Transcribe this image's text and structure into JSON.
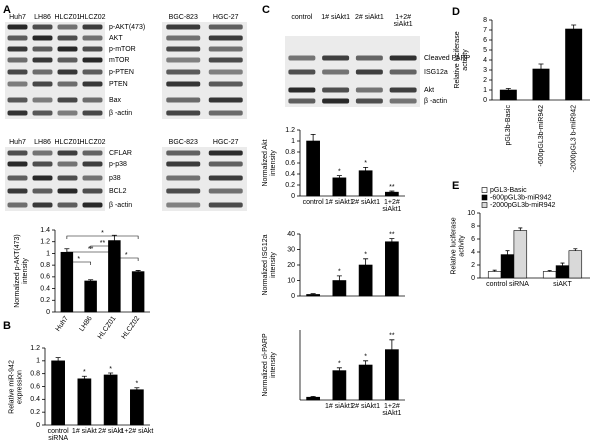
{
  "panel_labels": [
    "A",
    "B",
    "C",
    "D",
    "E"
  ],
  "blots": [
    {
      "columns": [
        "Huh7",
        "LH86",
        "HLCZ01",
        "HLCZ02"
      ],
      "rows": [
        "p-AKT(473)",
        "AKT",
        "p-mTOR",
        "mTOR",
        "p-PTEN",
        "PTEN",
        "Bax",
        "β -actin"
      ]
    },
    {
      "columns": [
        "BGC-823",
        "HGC-27"
      ]
    },
    {
      "columns": [
        "Huh7",
        "LH86",
        "HLCZ01",
        "HLCZ02"
      ],
      "rows": [
        "CFLAR",
        "p-p38",
        "p38",
        "BCL2",
        "β -actin"
      ]
    },
    {
      "columns": [
        "BGC-823",
        "HGC-27"
      ]
    },
    {
      "columns": [
        "control",
        "1# siAkt1",
        "2# siAkt1",
        "1+2# siAkt1"
      ],
      "rows": [
        "Cleaved PARP",
        "ISG12a",
        "Akt",
        "β -actin"
      ]
    }
  ],
  "chart_data": [
    {
      "type": "bar",
      "y_label": "Normalized p-AKT(473) intensity",
      "categories": [
        "Huh7",
        "LH86",
        "HLCZ01",
        "HLCZ02"
      ],
      "values": [
        1.02,
        0.53,
        1.22,
        0.69
      ],
      "errors": [
        0.06,
        0.02,
        0.09,
        0.02
      ],
      "color": "#000000",
      "ylim": [
        0,
        1.4
      ],
      "yticks": [
        0,
        0.2,
        0.4,
        0.6,
        0.8,
        1,
        1.2,
        1.4
      ],
      "annotations": [
        "*",
        "**",
        "**",
        "*",
        "*"
      ]
    },
    {
      "type": "bar",
      "y_label": "Relative miR-942 expression",
      "categories": [
        "control siRNA",
        "1# siAkt",
        "2# siAkt",
        "1+2# siAkt"
      ],
      "values": [
        1.0,
        0.72,
        0.78,
        0.55
      ],
      "errors": [
        0.05,
        0.04,
        0.03,
        0.03
      ],
      "marks": [
        null,
        "*",
        "*",
        "*"
      ],
      "color": "#000000",
      "ylim": [
        0,
        1.2
      ],
      "yticks": [
        0,
        0.2,
        0.4,
        0.6,
        0.8,
        1,
        1.2
      ]
    },
    {
      "type": "bar",
      "y_label": "Normalized Akt intensity",
      "categories": [
        "control",
        "1# siAkt1",
        "2# siAkt1",
        "1+2# siAkt1"
      ],
      "values": [
        1.0,
        0.33,
        0.46,
        0.07
      ],
      "errors": [
        0.12,
        0.04,
        0.06,
        0.02
      ],
      "marks": [
        null,
        "*",
        "*",
        "**"
      ],
      "color": "#000000",
      "ylim": [
        0,
        1.2
      ],
      "yticks": [
        0,
        0.2,
        0.4,
        0.6,
        0.8,
        1,
        1.2
      ]
    },
    {
      "type": "bar",
      "y_label": "Normalized ISG12a intensity",
      "values": [
        1,
        10,
        20,
        35
      ],
      "errors": [
        0.5,
        3,
        4,
        2
      ],
      "marks": [
        null,
        "*",
        "*",
        "**"
      ],
      "color": "#000000",
      "ylim": [
        0,
        40
      ],
      "yticks": [
        0,
        10,
        20,
        30,
        40
      ]
    },
    {
      "type": "bar",
      "y_label": "Normalized cl-PARP intensity",
      "categories": [
        null,
        "1# siAkt1",
        "2# siAkt1",
        "1+2# siAkt1"
      ],
      "values": [
        1,
        10.5,
        12.5,
        18
      ],
      "errors": [
        0.3,
        1,
        1.5,
        3.5
      ],
      "marks": [
        null,
        "*",
        "*",
        "**"
      ],
      "color": "#000000",
      "ylim": [
        0,
        25
      ]
    },
    {
      "type": "bar",
      "y_label": "Relative luciferase activity",
      "categories": [
        "pGL3b-Basic",
        "-600pGL3b-miR942",
        "-2000pGL3 b-miR942"
      ],
      "values": [
        1.0,
        3.1,
        7.1
      ],
      "errors": [
        0.15,
        0.5,
        0.4
      ],
      "color": "#000000",
      "ylim": [
        0,
        8
      ],
      "yticks": [
        0,
        1,
        2,
        3,
        4,
        5,
        6,
        7,
        8
      ]
    },
    {
      "type": "grouped_bar",
      "y_label": "Relative luciferase activity",
      "categories": [
        "control siRNA",
        "siAKT"
      ],
      "series": [
        {
          "name": "pGL3-Basic",
          "color": "#ffffff",
          "values": [
            1,
            1
          ],
          "errors": [
            0.2,
            0.15
          ]
        },
        {
          "name": "-600pGL3b-miR942",
          "color": "#000000",
          "values": [
            3.6,
            1.9
          ],
          "errors": [
            0.6,
            0.4
          ]
        },
        {
          "name": "-2000pGL3b-miR942",
          "color": "#d9d9d9",
          "values": [
            7.3,
            4.2
          ],
          "errors": [
            0.4,
            0.3
          ]
        }
      ],
      "ylim": [
        0,
        10
      ],
      "yticks": [
        0,
        2,
        4,
        6,
        8,
        10
      ],
      "legend": "top-left"
    }
  ]
}
